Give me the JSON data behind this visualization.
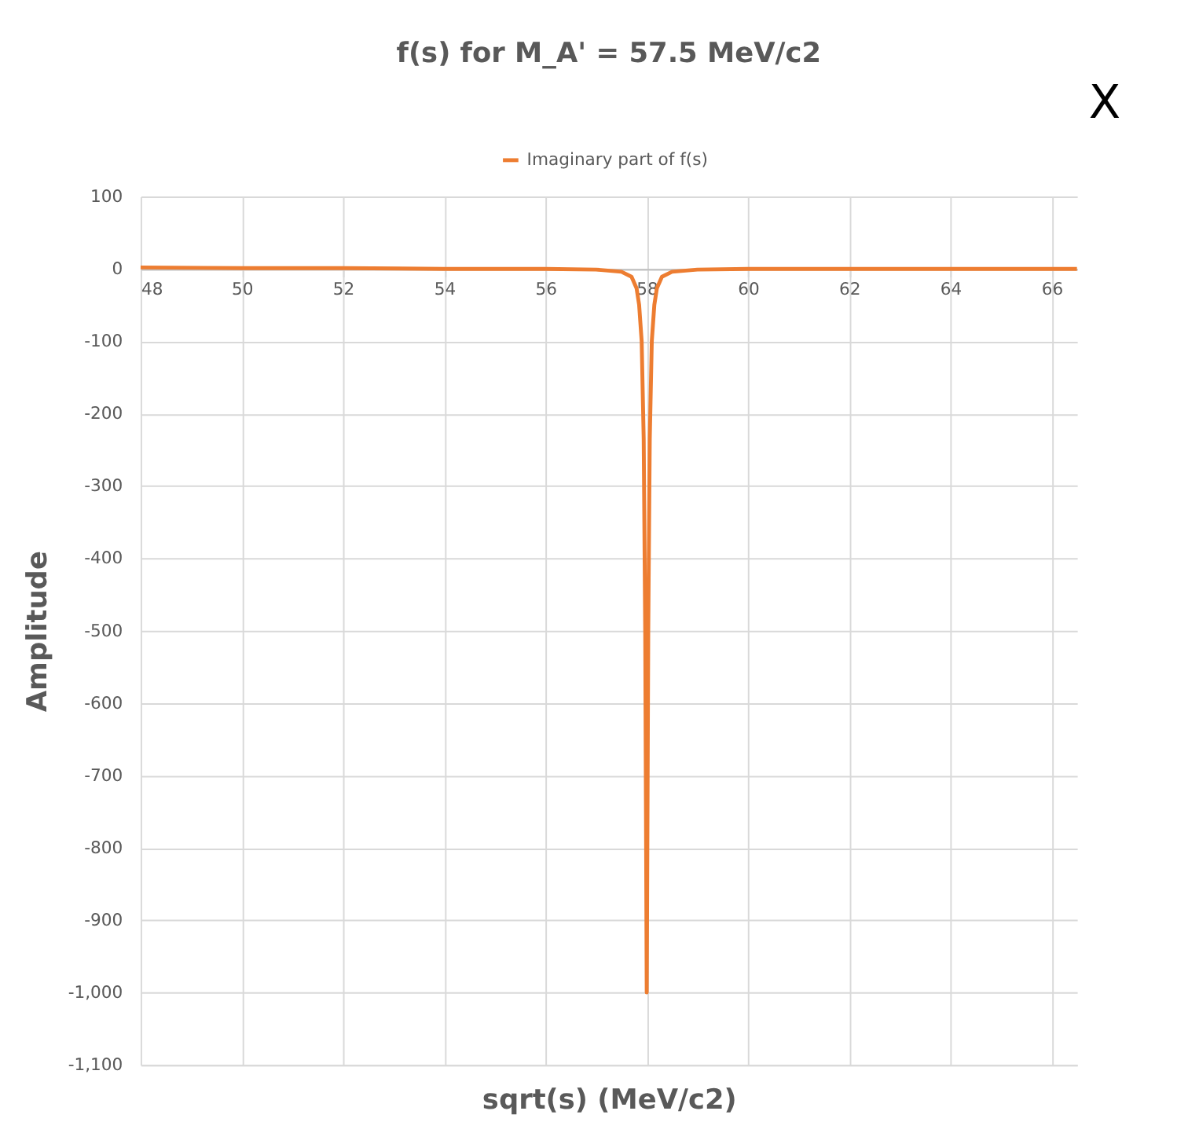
{
  "chart_data": {
    "type": "line",
    "title": "f(s) for M_A' = 57.5 MeV/c2",
    "xlabel": "sqrt(s) (MeV/c2)",
    "ylabel": "Amplitude",
    "x": [
      48,
      50,
      52,
      54,
      56,
      57,
      57.5,
      57.7,
      57.8,
      57.85,
      57.9,
      57.94,
      57.97,
      58,
      58.03,
      58.06,
      58.1,
      58.15,
      58.2,
      58.3,
      58.5,
      59,
      60,
      62,
      64,
      66.5
    ],
    "series": [
      {
        "name": "Imaginary part of f(s)",
        "color": "#ed7d31",
        "values": [
          2,
          1,
          1,
          0,
          0,
          -1,
          -4,
          -11,
          -27,
          -50,
          -100,
          -235,
          -500,
          -1000,
          -500,
          -235,
          -100,
          -50,
          -27,
          -11,
          -4,
          -1,
          0,
          0,
          0,
          0
        ]
      }
    ],
    "xlim": [
      48,
      66.5
    ],
    "xticks": [
      48,
      50,
      52,
      54,
      56,
      58,
      60,
      62,
      64,
      66
    ],
    "ylim": [
      -1100,
      100
    ],
    "yticks": [
      100,
      0,
      -100,
      -200,
      -300,
      -400,
      -500,
      -600,
      -700,
      -800,
      -900,
      {
        "value": -1000,
        "label": "-1,000"
      },
      {
        "value": -1100,
        "label": "-1,100"
      }
    ],
    "grid": true,
    "legend": "top",
    "annotations": [
      "X"
    ]
  }
}
